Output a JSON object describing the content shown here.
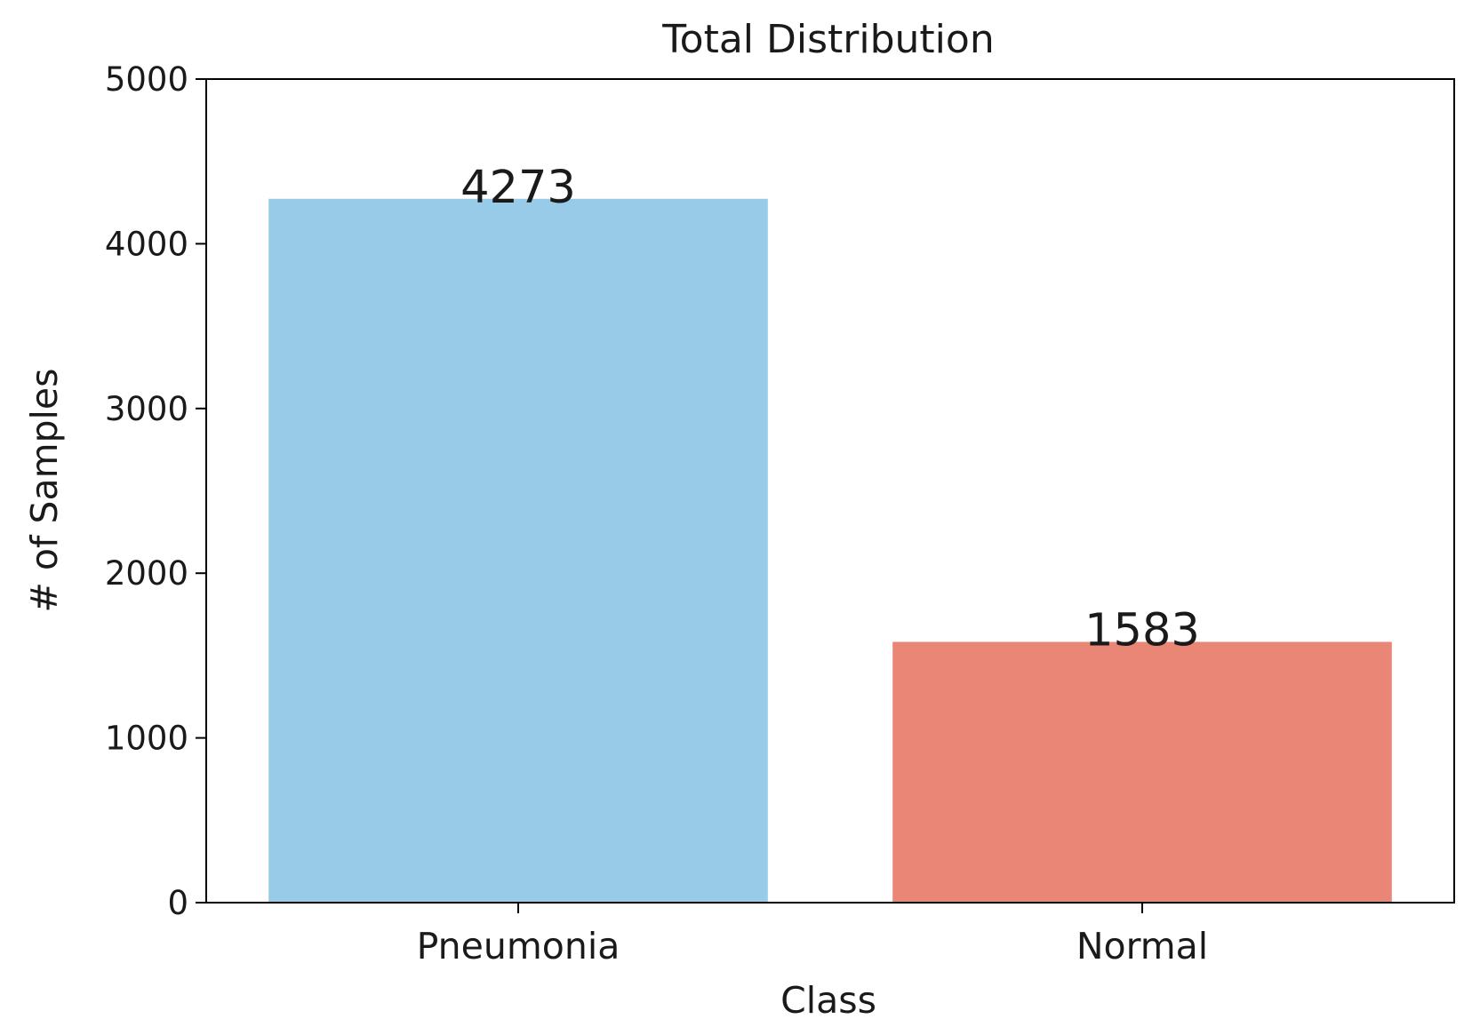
{
  "chart_data": {
    "type": "bar",
    "title": "Total Distribution",
    "xlabel": "Class",
    "ylabel": "# of Samples",
    "categories": [
      "Pneumonia",
      "Normal"
    ],
    "values": [
      4273,
      1583
    ],
    "data_labels": [
      "4273",
      "1583"
    ],
    "bar_colors": [
      "#97cbe8",
      "#e98676"
    ],
    "ylim": [
      0,
      5000
    ],
    "yticks": [
      0,
      1000,
      2000,
      3000,
      4000,
      5000
    ],
    "ytick_labels": [
      "0",
      "1000",
      "2000",
      "3000",
      "4000",
      "5000"
    ],
    "grid": false,
    "legend": "none"
  }
}
